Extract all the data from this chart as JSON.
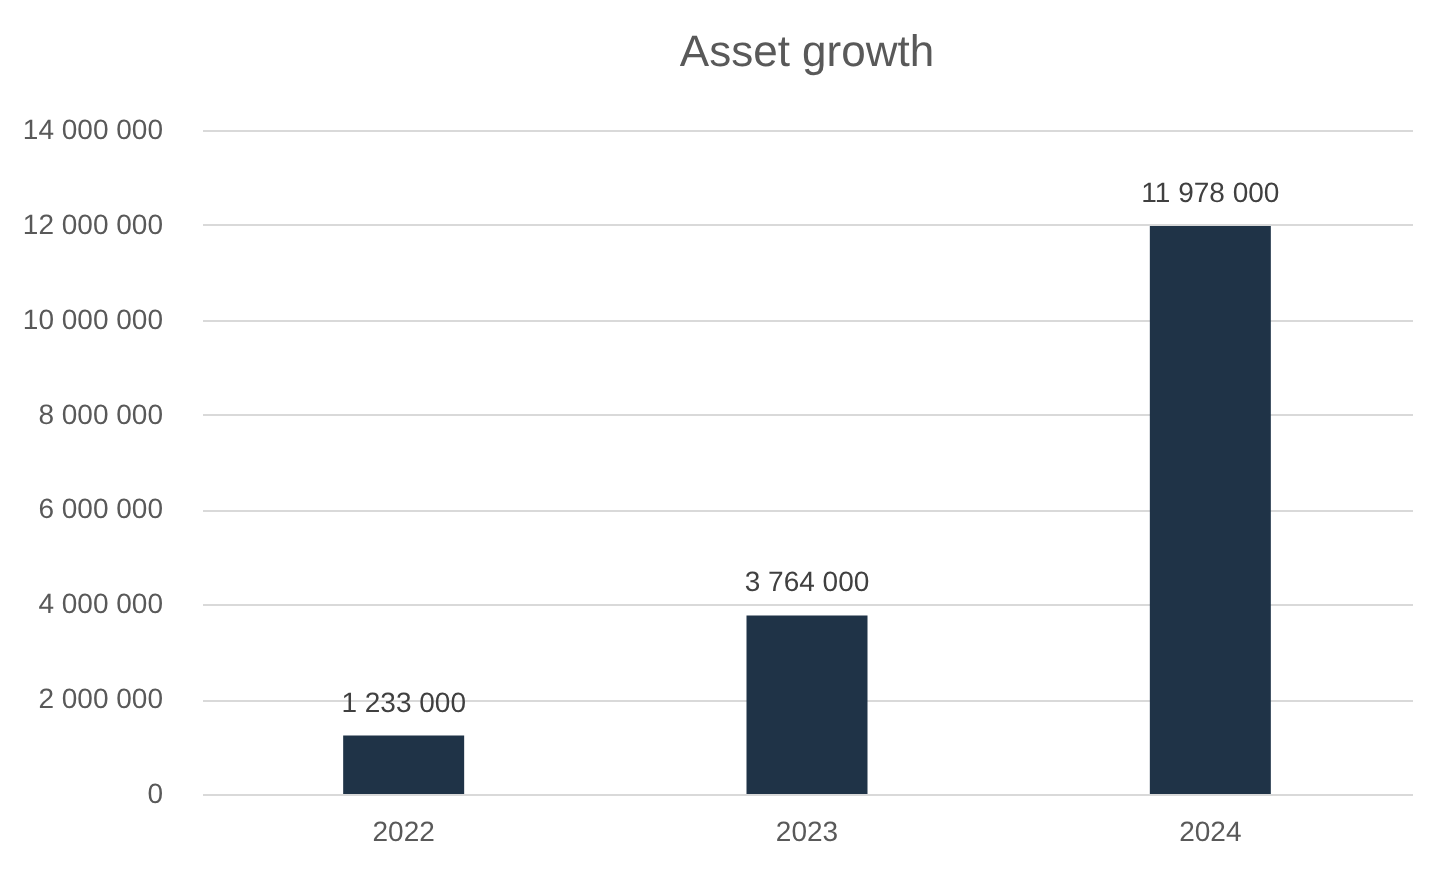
{
  "chart_data": {
    "type": "bar",
    "title": "Asset growth",
    "categories": [
      "2022",
      "2023",
      "2024"
    ],
    "values": [
      1233000,
      3764000,
      11978000
    ],
    "value_labels": [
      "1 233 000",
      "3 764 000",
      "11 978 000"
    ],
    "color": "#1f3347",
    "ylim": [
      0,
      14000000
    ],
    "yticks": [
      {
        "value": 0,
        "label": "0"
      },
      {
        "value": 2000000,
        "label": "2 000 000"
      },
      {
        "value": 4000000,
        "label": "4 000 000"
      },
      {
        "value": 6000000,
        "label": "6 000 000"
      },
      {
        "value": 8000000,
        "label": "8 000 000"
      },
      {
        "value": 10000000,
        "label": "10 000 000"
      },
      {
        "value": 12000000,
        "label": "12 000 000"
      },
      {
        "value": 14000000,
        "label": "14 000 000"
      }
    ],
    "grid": "y"
  }
}
